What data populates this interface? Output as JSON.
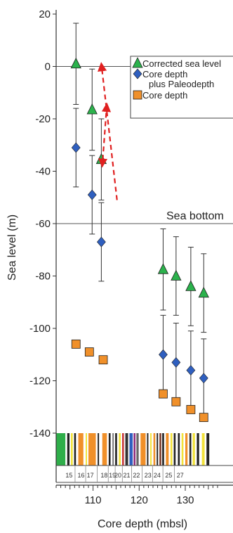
{
  "chart_data": {
    "type": "scatter",
    "xlabel": "Core depth (mbsl)",
    "ylabel": "Sea level  (m)",
    "xlim": [
      102,
      137
    ],
    "ylim": [
      -140,
      20
    ],
    "x_ticks": [
      110,
      120,
      130
    ],
    "x_tick_labels": [
      "110",
      "120",
      "130"
    ],
    "y_ticks": [
      20,
      0,
      -20,
      -40,
      -60,
      -80,
      -100,
      -120,
      -140
    ],
    "y_tick_labels": [
      "20",
      "0",
      "-20",
      "-40",
      "-60",
      "-80",
      "-100",
      "-120",
      "-140"
    ],
    "grid": false,
    "legend": {
      "placement": "top-right",
      "entries": [
        {
          "label": "Corrected sea level",
          "marker": "triangle",
          "color": "#2bb24c"
        },
        {
          "label": "Core depth",
          "marker": "diamond",
          "color": "#2f5fbf"
        },
        {
          "label": "plus Paleodepth",
          "marker": "none",
          "color": ""
        },
        {
          "label": "Core depth",
          "marker": "square",
          "color": "#f0902a"
        }
      ]
    },
    "reference_lines": [
      {
        "y": 0,
        "label": ""
      },
      {
        "y": -60,
        "label": "Sea bottom"
      }
    ],
    "series": [
      {
        "name": "Corrected sea level",
        "marker": "triangle",
        "color": "#2bb24c",
        "points": [
          {
            "x": 106.3,
            "y": 1,
            "err": 15.5
          },
          {
            "x": 109.8,
            "y": -16.5,
            "err": 15.5
          },
          {
            "x": 111.8,
            "y": -35.5,
            "err": 15.5
          },
          {
            "x": 125.2,
            "y": -77.5,
            "err": 15.5
          },
          {
            "x": 128.0,
            "y": -80,
            "err": 15
          },
          {
            "x": 131.2,
            "y": -84,
            "err": 15
          },
          {
            "x": 134.0,
            "y": -86.5,
            "err": 15
          }
        ]
      },
      {
        "name": "Core depth plus Paleodepth",
        "marker": "diamond",
        "color": "#2f5fbf",
        "points": [
          {
            "x": 106.3,
            "y": -31,
            "err": 15
          },
          {
            "x": 109.8,
            "y": -49,
            "err": 15
          },
          {
            "x": 111.8,
            "y": -67,
            "err": 15
          },
          {
            "x": 125.2,
            "y": -110,
            "err": 15
          },
          {
            "x": 128.0,
            "y": -113,
            "err": 15
          },
          {
            "x": 131.2,
            "y": -116,
            "err": 15
          },
          {
            "x": 134.0,
            "y": -119,
            "err": 15
          }
        ]
      },
      {
        "name": "Core depth",
        "marker": "square",
        "color": "#f0902a",
        "points": [
          {
            "x": 106.3,
            "y": -106
          },
          {
            "x": 109.2,
            "y": -109
          },
          {
            "x": 112.2,
            "y": -112
          },
          {
            "x": 125.2,
            "y": -125
          },
          {
            "x": 128.0,
            "y": -128
          },
          {
            "x": 131.2,
            "y": -131
          },
          {
            "x": 134.0,
            "y": -134
          }
        ]
      }
    ],
    "annotations": [
      {
        "text": "Sea bottom",
        "kind": "label"
      },
      {
        "kind": "arrow",
        "color": "#e02020",
        "style": "dashed",
        "from": {
          "x": 115.2,
          "y": -51
        },
        "to": {
          "x": 111.8,
          "y": 1
        }
      },
      {
        "kind": "double-arrow",
        "color": "#e02020",
        "style": "dashed",
        "from": {
          "x": 113.0,
          "y": -14.5
        },
        "to": {
          "x": 112.0,
          "y": -38
        }
      }
    ],
    "core_strip": {
      "core_labels": [
        "15",
        "16",
        "17",
        "18",
        "19",
        "20",
        "21",
        "22",
        "23",
        "24",
        "25",
        "27"
      ],
      "core_centers": [
        104.8,
        107.4,
        109.4,
        112.4,
        114.2,
        115.4,
        117.3,
        119.4,
        121.9,
        123.9,
        126.4,
        128.9
      ],
      "bands": [
        {
          "from": 102.0,
          "to": 104.0,
          "color": "#2fae4a"
        },
        {
          "from": 104.4,
          "to": 104.9,
          "color": "#222222"
        },
        {
          "from": 105.2,
          "to": 105.6,
          "color": "#f2e23a"
        },
        {
          "from": 105.9,
          "to": 106.3,
          "color": "#222222"
        },
        {
          "from": 106.8,
          "to": 107.9,
          "color": "#f0902a"
        },
        {
          "from": 108.4,
          "to": 108.7,
          "color": "#f2e23a"
        },
        {
          "from": 109.0,
          "to": 110.6,
          "color": "#f0902a"
        },
        {
          "from": 111.0,
          "to": 111.3,
          "color": "#222222"
        },
        {
          "from": 112.0,
          "to": 113.0,
          "color": "#f0902a"
        },
        {
          "from": 113.4,
          "to": 113.8,
          "color": "#222222"
        },
        {
          "from": 114.2,
          "to": 114.5,
          "color": "#777777"
        },
        {
          "from": 114.8,
          "to": 115.2,
          "color": "#222222"
        },
        {
          "from": 115.6,
          "to": 116.0,
          "color": "#f2e23a"
        },
        {
          "from": 116.3,
          "to": 116.7,
          "color": "#c83a3a"
        },
        {
          "from": 117.0,
          "to": 117.6,
          "color": "#333333"
        },
        {
          "from": 117.9,
          "to": 118.6,
          "color": "#2f5fbf"
        },
        {
          "from": 118.8,
          "to": 119.2,
          "color": "#8c2a7a"
        },
        {
          "from": 119.4,
          "to": 119.9,
          "color": "#666666"
        },
        {
          "from": 120.3,
          "to": 121.4,
          "color": "#f0902a"
        },
        {
          "from": 121.7,
          "to": 122.0,
          "color": "#222222"
        },
        {
          "from": 122.4,
          "to": 122.7,
          "color": "#f2e23a"
        },
        {
          "from": 123.1,
          "to": 123.5,
          "color": "#f0902a"
        },
        {
          "from": 123.8,
          "to": 124.1,
          "color": "#222222"
        },
        {
          "from": 124.4,
          "to": 124.8,
          "color": "#7a3a2a"
        },
        {
          "from": 125.0,
          "to": 125.4,
          "color": "#222222"
        },
        {
          "from": 125.8,
          "to": 126.4,
          "color": "#f0902a"
        },
        {
          "from": 126.8,
          "to": 127.2,
          "color": "#f2e23a"
        },
        {
          "from": 127.5,
          "to": 127.9,
          "color": "#222222"
        },
        {
          "from": 128.4,
          "to": 128.8,
          "color": "#222222"
        },
        {
          "from": 129.2,
          "to": 129.6,
          "color": "#f2e23a"
        },
        {
          "from": 130.0,
          "to": 130.5,
          "color": "#f0902a"
        },
        {
          "from": 130.9,
          "to": 131.3,
          "color": "#222222"
        },
        {
          "from": 131.6,
          "to": 132.1,
          "color": "#f2e23a"
        },
        {
          "from": 132.5,
          "to": 133.0,
          "color": "#222222"
        },
        {
          "from": 133.6,
          "to": 134.2,
          "color": "#f2e23a"
        },
        {
          "from": 134.6,
          "to": 135.2,
          "color": "#222222"
        }
      ]
    }
  }
}
